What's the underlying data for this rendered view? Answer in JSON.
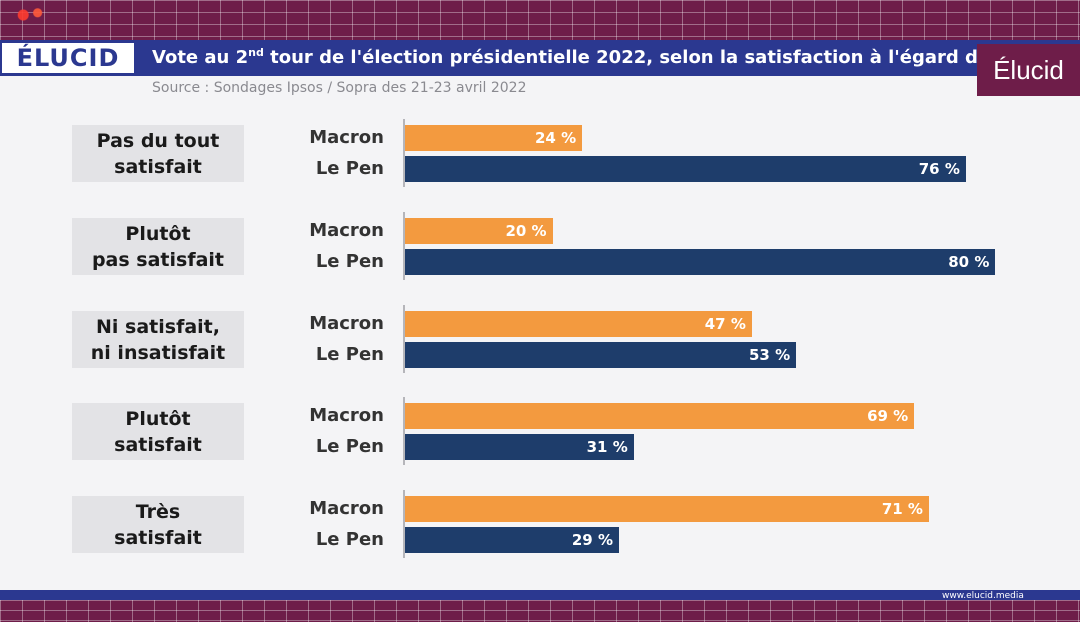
{
  "header": {
    "logo_text": "ÉLUCID",
    "title_prefix": "Vote au 2",
    "title_sup": "nd",
    "title_rest": " tour de l'élection présidentielle 2022, selon la satisfaction à l'égard d",
    "subtitle": "Source : Sondages Ipsos / Sopra des 21-23 avril 2022",
    "badge_text": "Élucid"
  },
  "footer": {
    "url": "www.elucid.media"
  },
  "chart_data": {
    "type": "bar",
    "orientation": "horizontal",
    "title": "Vote au 2nd tour de l'élection présidentielle 2022, selon la satisfaction à l'égard d",
    "subtitle": "Source : Sondages Ipsos / Sopra des 21-23 avril 2022",
    "categories": [
      "Pas du tout\nsatisfait",
      "Plutôt\npas satisfait",
      "Ni satisfait,\nni insatisfait",
      "Plutôt\nsatisfait",
      "Très\nsatisfait"
    ],
    "series": [
      {
        "name": "Macron",
        "color": "#f39a3f",
        "values": [
          24,
          20,
          47,
          69,
          71
        ],
        "labels": [
          "24 %",
          "20 %",
          "47 %",
          "69 %",
          "71 %"
        ]
      },
      {
        "name": "Le Pen",
        "color": "#1e3d6b",
        "values": [
          76,
          80,
          53,
          31,
          29
        ],
        "labels": [
          "76 %",
          "80 %",
          "53 %",
          "31 %",
          "29 %"
        ]
      }
    ],
    "xlim": [
      0,
      100
    ],
    "grid": false,
    "legend": "none"
  }
}
